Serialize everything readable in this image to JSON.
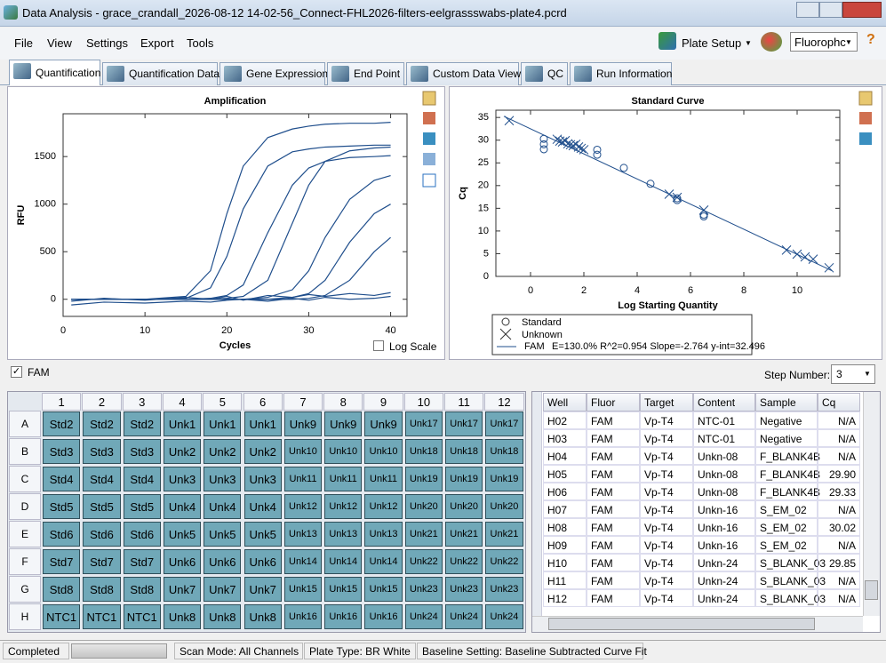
{
  "window": {
    "title": "Data Analysis - grace_crandall_2026-08-12 14-02-56_Connect-FHL2026-filters-eelgrassswabs-plate4.pcrd"
  },
  "menu": [
    "File",
    "View",
    "Settings",
    "Export",
    "Tools"
  ],
  "toolbar": {
    "plate_setup": "Plate Setup",
    "fluorophore": "Fluorophc"
  },
  "tabs": [
    "Quantification",
    "Quantification Data",
    "Gene Expression",
    "End Point",
    "Custom Data View",
    "QC",
    "Run Information"
  ],
  "chart_data": [
    {
      "type": "line",
      "title": "Amplification",
      "x_label": "Cycles",
      "y_label": "RFU",
      "xlim": [
        0,
        42
      ],
      "ylim": [
        -180,
        1950
      ],
      "xticks": [
        0,
        10,
        20,
        30,
        40
      ],
      "yticks": [
        0,
        500,
        1000,
        1500
      ],
      "log_scale": false,
      "log_scale_label": "Log Scale",
      "x": [
        1,
        5,
        10,
        15,
        18,
        20,
        22,
        25,
        28,
        30,
        32,
        35,
        38,
        40
      ],
      "series": [
        {
          "color": "#1f4e8c",
          "values": [
            0,
            0,
            0,
            30,
            300,
            900,
            1400,
            1700,
            1790,
            1820,
            1840,
            1850,
            1850,
            1860
          ]
        },
        {
          "color": "#1f4e8c",
          "values": [
            0,
            0,
            0,
            10,
            120,
            450,
            950,
            1400,
            1550,
            1580,
            1600,
            1610,
            1620,
            1620
          ]
        },
        {
          "color": "#1f4e8c",
          "values": [
            0,
            0,
            0,
            0,
            10,
            40,
            150,
            700,
            1200,
            1380,
            1450,
            1490,
            1500,
            1510
          ]
        },
        {
          "color": "#1f4e8c",
          "values": [
            0,
            0,
            0,
            0,
            0,
            10,
            30,
            200,
            800,
            1200,
            1450,
            1560,
            1590,
            1600
          ]
        },
        {
          "color": "#1f4e8c",
          "values": [
            0,
            0,
            0,
            0,
            0,
            0,
            0,
            20,
            100,
            300,
            650,
            1050,
            1250,
            1300
          ]
        },
        {
          "color": "#1f4e8c",
          "values": [
            0,
            0,
            0,
            0,
            0,
            0,
            0,
            0,
            20,
            60,
            200,
            600,
            900,
            1000
          ]
        },
        {
          "color": "#1f4e8c",
          "values": [
            0,
            0,
            0,
            0,
            0,
            0,
            0,
            0,
            0,
            10,
            40,
            200,
            500,
            650
          ]
        },
        {
          "color": "#1f4e8c",
          "values": [
            -20,
            10,
            -10,
            20,
            0,
            30,
            -10,
            40,
            20,
            50,
            30,
            60,
            40,
            70
          ]
        },
        {
          "color": "#1f4e8c",
          "values": [
            -60,
            -30,
            -40,
            -20,
            -30,
            -10,
            0,
            -20,
            10,
            -10,
            20,
            0,
            10,
            30
          ]
        }
      ]
    },
    {
      "type": "scatter",
      "title": "Standard Curve",
      "x_label": "Log Starting Quantity",
      "y_label": "Cq",
      "xlim": [
        -1.3,
        11.6
      ],
      "ylim": [
        0,
        36.6
      ],
      "xticks": [
        0,
        2,
        4,
        6,
        8,
        10
      ],
      "yticks": [
        0,
        5,
        10,
        15,
        20,
        25,
        30,
        35
      ],
      "color": "#1f4e8c",
      "series": [
        {
          "name": "Standard",
          "marker": "circle",
          "x": [
            0.5,
            0.5,
            0.5,
            2.5,
            2.5,
            3.5,
            4.5,
            5.5,
            5.5,
            6.5,
            6.5
          ],
          "values": [
            30.3,
            29.1,
            28,
            27.9,
            26.8,
            23.9,
            20.4,
            17.2,
            16.8,
            13.6,
            13.2
          ]
        },
        {
          "name": "Unknown",
          "marker": "x",
          "x": [
            -0.8,
            1.0,
            1.1,
            1.2,
            1.3,
            1.4,
            1.5,
            1.6,
            1.7,
            1.8,
            1.9,
            2.0,
            5.2,
            5.5,
            6.5,
            9.6,
            10.0,
            10.3,
            10.6,
            11.2
          ],
          "values": [
            34.3,
            30.2,
            29.8,
            29.6,
            29.9,
            29.2,
            29.0,
            28.8,
            29.1,
            28.5,
            28.2,
            27.9,
            18.1,
            17.4,
            14.6,
            5.8,
            4.9,
            4.3,
            3.8,
            1.9
          ]
        }
      ],
      "fit": {
        "name": "FAM",
        "label": "E=130.0% R^2=0.954 Slope=-2.764 y-int=32.496",
        "slope": -2.764,
        "intercept": 32.496,
        "xrange": [
          -1,
          11.3
        ]
      }
    }
  ],
  "fluor_checkbox": "FAM",
  "step_label": "Step Number:",
  "step_value": "3",
  "plate": {
    "columns": [
      "1",
      "2",
      "3",
      "4",
      "5",
      "6",
      "7",
      "8",
      "9",
      "10",
      "11",
      "12"
    ],
    "rows": [
      "A",
      "B",
      "C",
      "D",
      "E",
      "F",
      "G",
      "H"
    ],
    "cells": [
      [
        "Std2",
        "Std2",
        "Std2",
        "Unk1",
        "Unk1",
        "Unk1",
        "Unk9",
        "Unk9",
        "Unk9",
        "Unk17",
        "Unk17",
        "Unk17"
      ],
      [
        "Std3",
        "Std3",
        "Std3",
        "Unk2",
        "Unk2",
        "Unk2",
        "Unk10",
        "Unk10",
        "Unk10",
        "Unk18",
        "Unk18",
        "Unk18"
      ],
      [
        "Std4",
        "Std4",
        "Std4",
        "Unk3",
        "Unk3",
        "Unk3",
        "Unk11",
        "Unk11",
        "Unk11",
        "Unk19",
        "Unk19",
        "Unk19"
      ],
      [
        "Std5",
        "Std5",
        "Std5",
        "Unk4",
        "Unk4",
        "Unk4",
        "Unk12",
        "Unk12",
        "Unk12",
        "Unk20",
        "Unk20",
        "Unk20"
      ],
      [
        "Std6",
        "Std6",
        "Std6",
        "Unk5",
        "Unk5",
        "Unk5",
        "Unk13",
        "Unk13",
        "Unk13",
        "Unk21",
        "Unk21",
        "Unk21"
      ],
      [
        "Std7",
        "Std7",
        "Std7",
        "Unk6",
        "Unk6",
        "Unk6",
        "Unk14",
        "Unk14",
        "Unk14",
        "Unk22",
        "Unk22",
        "Unk22"
      ],
      [
        "Std8",
        "Std8",
        "Std8",
        "Unk7",
        "Unk7",
        "Unk7",
        "Unk15",
        "Unk15",
        "Unk15",
        "Unk23",
        "Unk23",
        "Unk23"
      ],
      [
        "NTC1",
        "NTC1",
        "NTC1",
        "Unk8",
        "Unk8",
        "Unk8",
        "Unk16",
        "Unk16",
        "Unk16",
        "Unk24",
        "Unk24",
        "Unk24"
      ]
    ]
  },
  "table": {
    "columns": [
      "Well",
      "Fluor",
      "Target",
      "Content",
      "Sample",
      "Cq"
    ],
    "rows": [
      [
        "H02",
        "FAM",
        "Vp-T4",
        "NTC-01",
        "Negative",
        "N/A"
      ],
      [
        "H03",
        "FAM",
        "Vp-T4",
        "NTC-01",
        "Negative",
        "N/A"
      ],
      [
        "H04",
        "FAM",
        "Vp-T4",
        "Unkn-08",
        "F_BLANK4B",
        "N/A"
      ],
      [
        "H05",
        "FAM",
        "Vp-T4",
        "Unkn-08",
        "F_BLANK4B",
        "29.90"
      ],
      [
        "H06",
        "FAM",
        "Vp-T4",
        "Unkn-08",
        "F_BLANK4B",
        "29.33"
      ],
      [
        "H07",
        "FAM",
        "Vp-T4",
        "Unkn-16",
        "S_EM_02",
        "N/A"
      ],
      [
        "H08",
        "FAM",
        "Vp-T4",
        "Unkn-16",
        "S_EM_02",
        "30.02"
      ],
      [
        "H09",
        "FAM",
        "Vp-T4",
        "Unkn-16",
        "S_EM_02",
        "N/A"
      ],
      [
        "H10",
        "FAM",
        "Vp-T4",
        "Unkn-24",
        "S_BLANK_03",
        "29.85"
      ],
      [
        "H11",
        "FAM",
        "Vp-T4",
        "Unkn-24",
        "S_BLANK_03",
        "N/A"
      ],
      [
        "H12",
        "FAM",
        "Vp-T4",
        "Unkn-24",
        "S_BLANK_03",
        "N/A"
      ]
    ]
  },
  "status": [
    "Completed",
    "Scan Mode: All Channels",
    "Plate Type: BR White",
    "Baseline Setting: Baseline Subtracted Curve Fit"
  ]
}
